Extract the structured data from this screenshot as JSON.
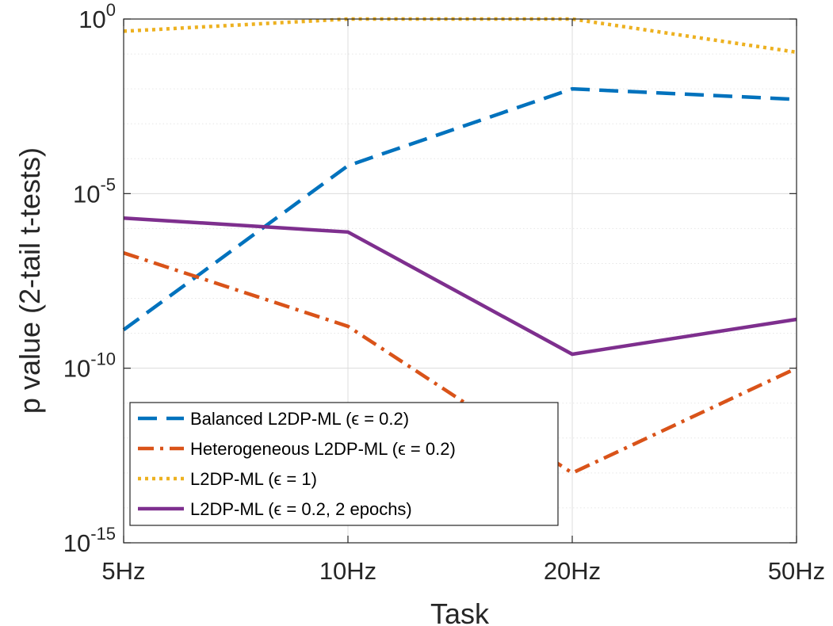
{
  "chart_data": {
    "type": "line",
    "title": "",
    "xlabel": "Task",
    "ylabel": "p value (2-tail t-tests)",
    "categories": [
      "5Hz",
      "10Hz",
      "20Hz",
      "50Hz"
    ],
    "yscale": "log",
    "ylim": [
      1e-15,
      1
    ],
    "yticks": [
      {
        "exp": 0,
        "base": "10",
        "power": "0"
      },
      {
        "exp": -5,
        "base": "10",
        "power": "-5"
      },
      {
        "exp": -10,
        "base": "10",
        "power": "-10"
      },
      {
        "exp": -15,
        "base": "10",
        "power": "-15"
      }
    ],
    "grid": true,
    "minor_grid": true,
    "legend_position": "bottom-left",
    "series": [
      {
        "name": "Balanced L2DP-ML (ϵ = 0.2)",
        "color": "#0072BD",
        "dash": "dashed",
        "log10_values": [
          -8.9,
          -4.2,
          -2.0,
          -2.3
        ]
      },
      {
        "name": "Heterogeneous L2DP-ML (ϵ = 0.2)",
        "color": "#D95319",
        "dash": "dashdot",
        "log10_values": [
          -6.7,
          -8.8,
          -13.0,
          -10.0
        ]
      },
      {
        "name": "L2DP-ML (ϵ = 1)",
        "color": "#EDB120",
        "dash": "dotted",
        "log10_values": [
          -0.35,
          0.0,
          0.0,
          -0.95
        ]
      },
      {
        "name": "L2DP-ML (ϵ = 0.2, 2 epochs)",
        "color": "#7E2F8E",
        "dash": "solid",
        "log10_values": [
          -5.7,
          -6.1,
          -9.6,
          -8.6
        ]
      }
    ]
  }
}
